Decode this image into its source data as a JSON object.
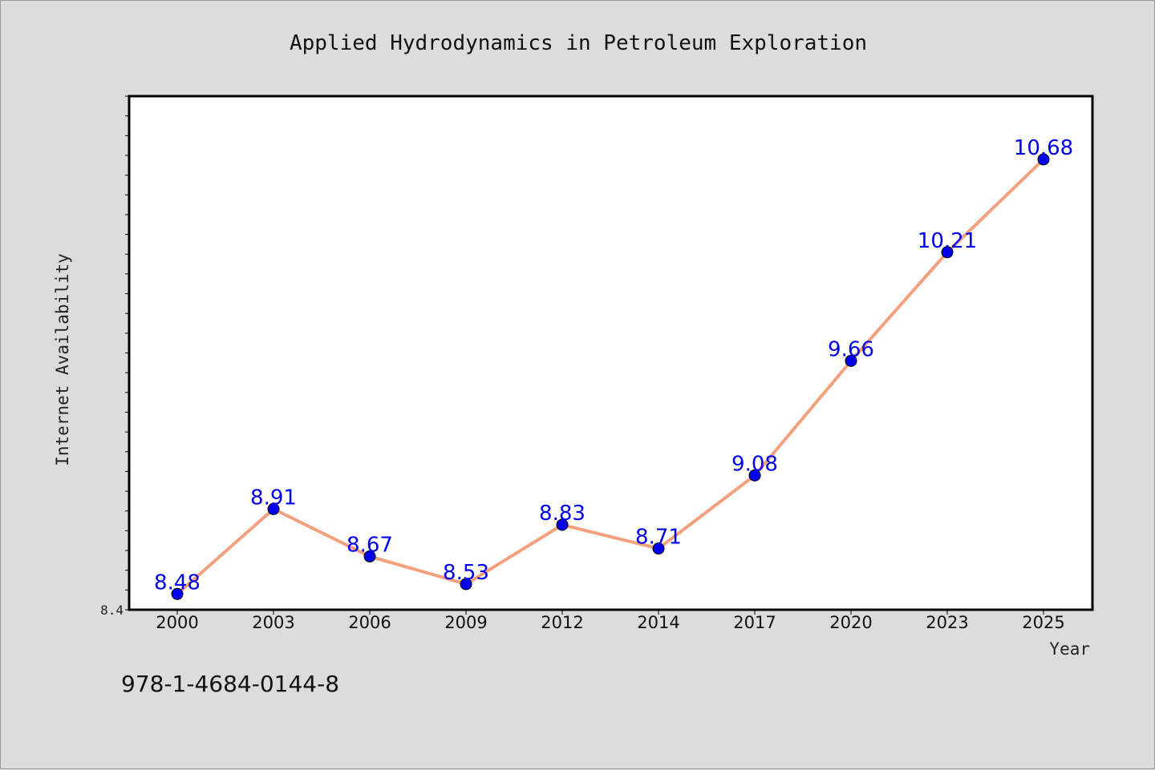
{
  "chart_data": {
    "type": "line",
    "title": "Applied Hydrodynamics in Petroleum Exploration",
    "xlabel": "Year",
    "ylabel": "Internet Availability",
    "categories": [
      "2000",
      "2003",
      "2006",
      "2009",
      "2012",
      "2014",
      "2017",
      "2020",
      "2023",
      "2025"
    ],
    "series": [
      {
        "values": [
          8.48,
          8.91,
          8.67,
          8.53,
          8.83,
          8.71,
          9.08,
          9.66,
          10.21,
          10.68
        ],
        "labels": [
          "8.48",
          "8.91",
          "8.67",
          "8.53",
          "8.83",
          "8.71",
          "9.08",
          "9.66",
          "10.21",
          "10.68"
        ]
      }
    ],
    "ylim": [
      8.4,
      11.0
    ],
    "y_tick_labels": [
      "8.4"
    ],
    "grid": false,
    "line_color": "#f4a07c",
    "marker_color": "#0000ee"
  },
  "footer": {
    "isbn": "978-1-4684-0144-8"
  }
}
